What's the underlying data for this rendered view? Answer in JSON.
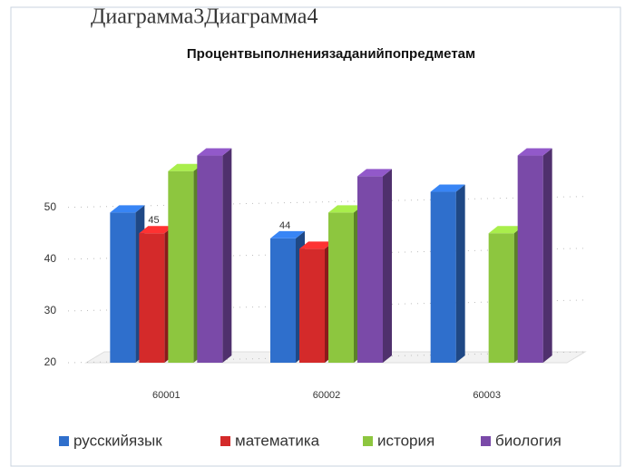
{
  "chart_data": {
    "type": "bar3d",
    "caption": "Диаграмма3Диаграмма4",
    "title": "Процентвыполнениязаданийпопредметам",
    "categories": [
      "60001",
      "60002",
      "60003"
    ],
    "series": [
      {
        "name": "русскийязык",
        "color": "#2f6fcc",
        "values": [
          49,
          44,
          53
        ]
      },
      {
        "name": "математика",
        "color": "#d42a2a",
        "values": [
          45,
          42,
          null
        ]
      },
      {
        "name": "история",
        "color": "#8dc63f",
        "values": [
          57,
          49,
          45
        ]
      },
      {
        "name": "биология",
        "color": "#7a4aa8",
        "values": [
          60,
          56,
          60
        ]
      }
    ],
    "data_labels": [
      [
        1,
        0
      ],
      [
        0,
        1
      ]
    ],
    "ylim": [
      20,
      65
    ],
    "yticks": [
      20,
      30,
      40,
      50
    ],
    "grid": true
  }
}
